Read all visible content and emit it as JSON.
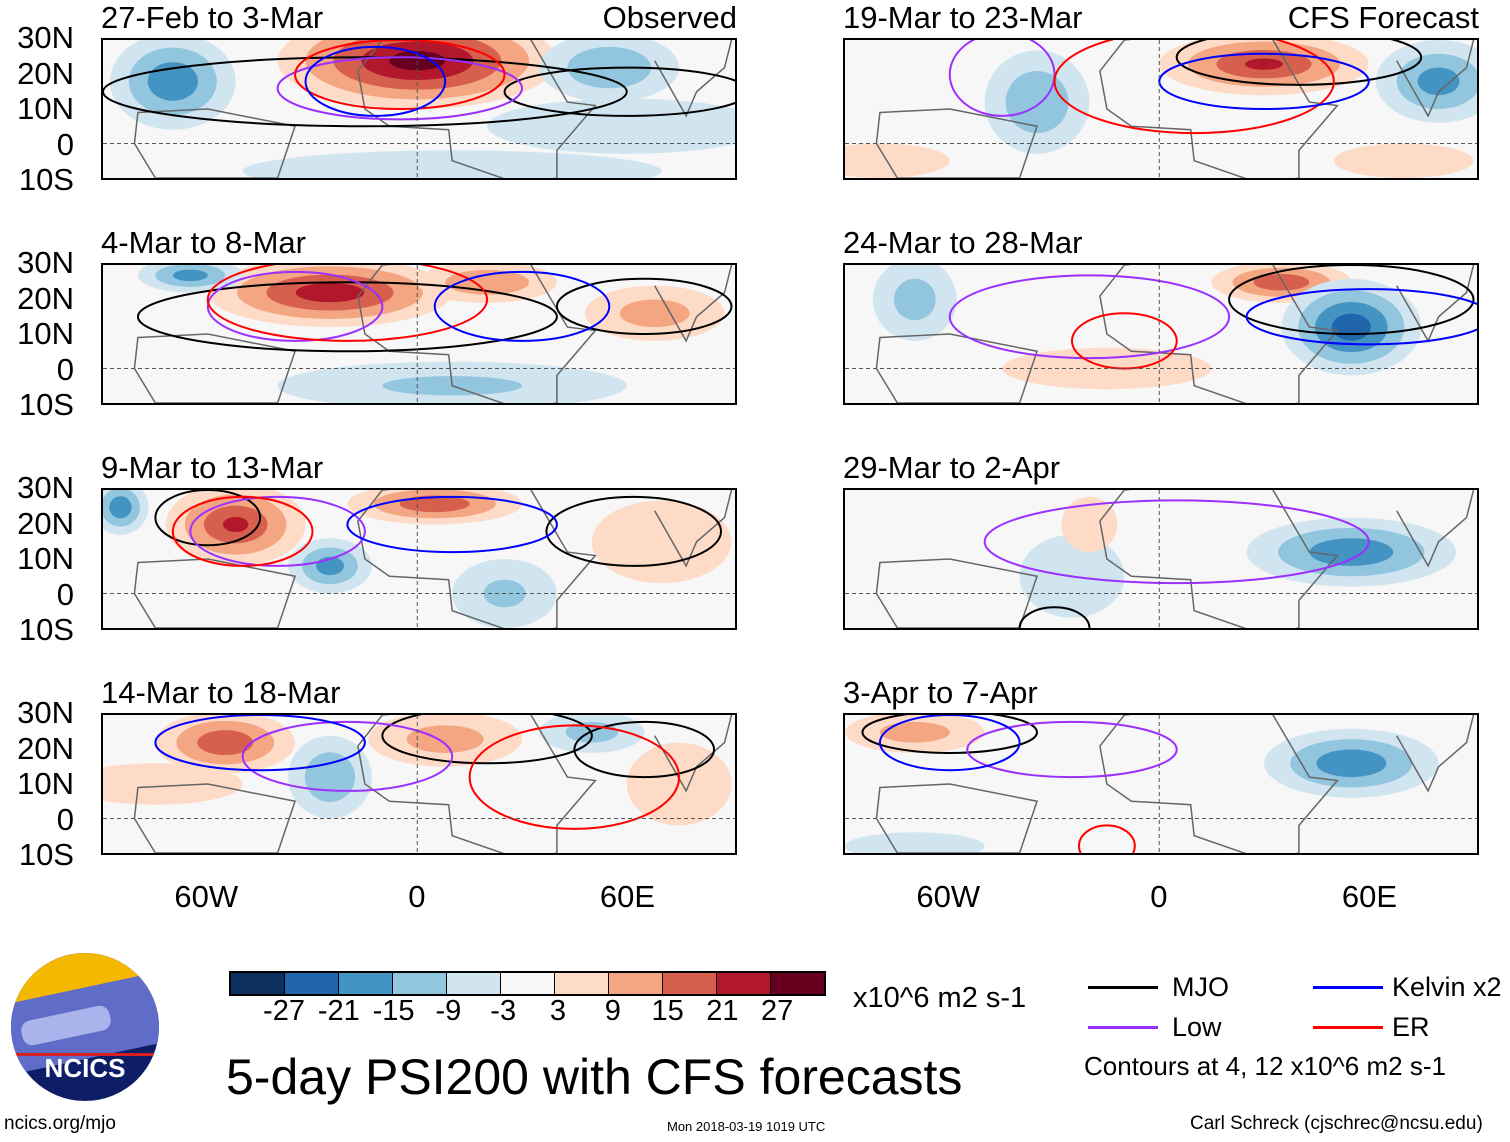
{
  "left_header_right": "Observed",
  "right_header_right": "CFS Forecast",
  "lat_labels": [
    "30N",
    "20N",
    "10N",
    "0",
    "10S"
  ],
  "lon_labels": [
    "60W",
    "0",
    "60E"
  ],
  "colorbar": {
    "levels": [
      "-27",
      "-21",
      "-15",
      "-9",
      "-3",
      "3",
      "9",
      "15",
      "21",
      "27"
    ],
    "colors": [
      "#0b2f5e",
      "#2166ac",
      "#4393c3",
      "#92c5de",
      "#d1e5f0",
      "#f7f7f7",
      "#fddbc7",
      "#f4a582",
      "#d6604d",
      "#b2182b",
      "#67001f"
    ],
    "units": "x10^6 m2 s-1"
  },
  "title": "5-day PSI200 with CFS forecasts",
  "legend": {
    "mjo": "MJO",
    "kelvin": "Kelvin x2",
    "low": "Low",
    "er": "ER",
    "mjo_color": "#000000",
    "kelvin_color": "#0000ff",
    "low_color": "#9b30ff",
    "er_color": "#ff0000",
    "note": "Contours at 4, 12 x10^6 m2 s-1"
  },
  "footer": {
    "url": "ncics.org/mjo",
    "timestamp": "Mon 2018-03-19 1019 UTC",
    "author": "Carl Schreck (cjschrec@ncsu.edu)"
  },
  "logo_text": "NCICS",
  "chart_data": {
    "type": "heatmap",
    "xlim": [
      -90,
      91
    ],
    "ylim": [
      -10,
      30
    ],
    "panels": [
      {
        "title": "27-Feb to 3-Mar",
        "anom": [
          [
            0,
            24,
            40,
            14,
            30
          ],
          [
            -70,
            18,
            18,
            14,
            -20
          ],
          [
            55,
            22,
            20,
            10,
            -15
          ],
          [
            10,
            -8,
            60,
            6,
            -8
          ],
          [
            60,
            5,
            40,
            8,
            -8
          ]
        ],
        "contours": [
          [
            "mjo",
            -15,
            15,
            75,
            10
          ],
          [
            "mjo",
            60,
            15,
            35,
            7
          ],
          [
            "low",
            -5,
            16,
            35,
            9
          ],
          [
            "er",
            -5,
            20,
            30,
            10
          ],
          [
            "kelvin",
            -12,
            18,
            20,
            10
          ]
        ]
      },
      {
        "title": "19-Mar to 23-Mar",
        "anom": [
          [
            30,
            23,
            30,
            9,
            22
          ],
          [
            -35,
            12,
            15,
            15,
            -15
          ],
          [
            80,
            18,
            18,
            12,
            -18
          ],
          [
            -80,
            -5,
            20,
            5,
            8
          ],
          [
            70,
            -5,
            20,
            5,
            8
          ]
        ],
        "contours": [
          [
            "mjo",
            40,
            25,
            35,
            8
          ],
          [
            "low",
            -45,
            20,
            15,
            12
          ],
          [
            "er",
            10,
            18,
            40,
            15
          ],
          [
            "kelvin",
            30,
            18,
            30,
            8
          ]
        ]
      },
      {
        "title": "4-Mar to 8-Mar",
        "anom": [
          [
            -25,
            22,
            35,
            10,
            25
          ],
          [
            20,
            25,
            20,
            6,
            15
          ],
          [
            68,
            16,
            20,
            8,
            12
          ],
          [
            -65,
            27,
            15,
            5,
            -18
          ],
          [
            10,
            -5,
            50,
            7,
            -10
          ]
        ],
        "contours": [
          [
            "mjo",
            -20,
            15,
            60,
            10
          ],
          [
            "mjo",
            65,
            18,
            25,
            8
          ],
          [
            "low",
            -35,
            18,
            25,
            10
          ],
          [
            "er",
            -20,
            20,
            40,
            12
          ],
          [
            "kelvin",
            30,
            18,
            25,
            10
          ]
        ]
      },
      {
        "title": "24-Mar to 28-Mar",
        "anom": [
          [
            35,
            25,
            20,
            6,
            20
          ],
          [
            55,
            12,
            20,
            14,
            -25
          ],
          [
            -70,
            20,
            12,
            12,
            -12
          ],
          [
            -15,
            0,
            30,
            6,
            5
          ]
        ],
        "contours": [
          [
            "mjo",
            55,
            20,
            35,
            10
          ],
          [
            "low",
            -20,
            15,
            40,
            12
          ],
          [
            "er",
            -10,
            8,
            15,
            8
          ],
          [
            "kelvin",
            60,
            15,
            35,
            8
          ]
        ]
      },
      {
        "title": "9-Mar to 13-Mar",
        "anom": [
          [
            -52,
            20,
            20,
            12,
            22
          ],
          [
            5,
            26,
            25,
            6,
            20
          ],
          [
            -25,
            8,
            12,
            8,
            -18
          ],
          [
            -85,
            25,
            8,
            8,
            -20
          ],
          [
            25,
            0,
            15,
            10,
            -10
          ],
          [
            70,
            15,
            20,
            12,
            8
          ]
        ],
        "contours": [
          [
            "mjo",
            62,
            18,
            25,
            10
          ],
          [
            "mjo",
            -60,
            22,
            15,
            8
          ],
          [
            "low",
            -40,
            18,
            25,
            10
          ],
          [
            "er",
            -50,
            18,
            20,
            10
          ],
          [
            "kelvin",
            10,
            20,
            30,
            8
          ]
        ]
      },
      {
        "title": "29-Mar to 2-Apr",
        "anom": [
          [
            55,
            12,
            30,
            10,
            -20
          ],
          [
            -25,
            5,
            15,
            12,
            -8
          ],
          [
            -20,
            20,
            8,
            8,
            5
          ]
        ],
        "contours": [
          [
            "low",
            5,
            15,
            55,
            12
          ],
          [
            "mjo",
            -30,
            -10,
            10,
            6
          ]
        ]
      },
      {
        "title": "14-Mar to 18-Mar",
        "anom": [
          [
            -55,
            22,
            20,
            9,
            20
          ],
          [
            8,
            23,
            22,
            8,
            12
          ],
          [
            -25,
            12,
            12,
            12,
            -15
          ],
          [
            50,
            25,
            15,
            6,
            -12
          ],
          [
            -75,
            10,
            25,
            6,
            8
          ],
          [
            75,
            10,
            15,
            12,
            8
          ]
        ],
        "contours": [
          [
            "mjo",
            20,
            24,
            30,
            8
          ],
          [
            "mjo",
            65,
            20,
            20,
            8
          ],
          [
            "low",
            -20,
            18,
            30,
            10
          ],
          [
            "er",
            45,
            12,
            30,
            15
          ],
          [
            "kelvin",
            -45,
            22,
            30,
            8
          ]
        ]
      },
      {
        "title": "3-Apr to 7-Apr",
        "anom": [
          [
            55,
            16,
            25,
            10,
            -20
          ],
          [
            -70,
            25,
            20,
            6,
            12
          ],
          [
            -70,
            -8,
            20,
            4,
            -6
          ]
        ],
        "contours": [
          [
            "mjo",
            -60,
            25,
            25,
            6
          ],
          [
            "low",
            -25,
            20,
            30,
            8
          ],
          [
            "er",
            -15,
            -8,
            8,
            6
          ],
          [
            "kelvin",
            -60,
            22,
            20,
            8
          ]
        ]
      }
    ]
  }
}
